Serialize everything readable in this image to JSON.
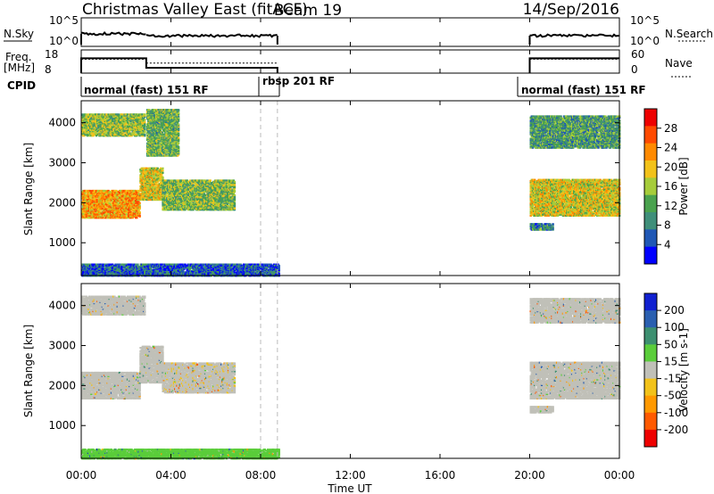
{
  "header": {
    "radar": "Christmas Valley East (fitACF)",
    "beam": "Beam 19",
    "date": "14/Sep/2016"
  },
  "panels": {
    "nsky_label": "N.Sky",
    "nsky_ticks": [
      "10^5",
      "10^0"
    ],
    "nsearch_label": "N.Search",
    "nsearch_ticks": [
      "10^5",
      "10^0"
    ],
    "freq_label": "Freq.",
    "freq_unit": "[MHz]",
    "freq_ticks": [
      "18",
      "8"
    ],
    "nave_label": "Nave",
    "nave_ticks": [
      "60",
      "0"
    ],
    "cpid_label": "CPID"
  },
  "cpid_segments": [
    {
      "label": "normal (fast) 151 RF",
      "start": 0.0
    },
    {
      "label": "rbsp 201 RF",
      "start": 8.0
    },
    {
      "label": "normal (fast) 151 RF",
      "start": 20.0
    }
  ],
  "x_axis": {
    "label": "Time UT",
    "ticks": [
      "00:00",
      "04:00",
      "08:00",
      "12:00",
      "16:00",
      "20:00",
      "00:00"
    ]
  },
  "colors": {
    "power_scale": [
      "#0000ff",
      "#1f57b5",
      "#3f8f7a",
      "#4aa24e",
      "#a6cc3a",
      "#f2c21a",
      "#ff8a00",
      "#ff4a00",
      "#ee0000"
    ],
    "velocity_scale": [
      "#ee0000",
      "#ff5a00",
      "#ff9900",
      "#f2c21a",
      "#c0c0b8",
      "#5acd3a",
      "#3c8f70",
      "#2a5fb0",
      "#1020d0"
    ]
  },
  "chart_data": [
    {
      "type": "heatmap",
      "title": "",
      "xlabel": "Time UT",
      "ylabel": "Slant Range [km]",
      "xlim": [
        0,
        24
      ],
      "ylim": [
        180,
        4550
      ],
      "yticks": [
        "1000",
        "2000",
        "3000",
        "4000"
      ],
      "colorbar": {
        "label": "Power [dB]",
        "ticks": [
          "28",
          "24",
          "20",
          "16",
          "12",
          "8",
          "4"
        ],
        "range": [
          0,
          32
        ]
      },
      "regions": [
        {
          "t0": 0.0,
          "t1": 2.6,
          "r0": 1650,
          "r1": 2350,
          "level": 22
        },
        {
          "t0": 2.6,
          "t1": 3.6,
          "r0": 2100,
          "r1": 2900,
          "level": 18
        },
        {
          "t0": 3.6,
          "t1": 6.8,
          "r0": 1850,
          "r1": 2600,
          "level": 14
        },
        {
          "t0": 0.0,
          "t1": 2.8,
          "r0": 3700,
          "r1": 4250,
          "level": 15
        },
        {
          "t0": 2.9,
          "t1": 4.3,
          "r0": 3200,
          "r1": 4350,
          "level": 13
        },
        {
          "t0": 0.0,
          "t1": 8.8,
          "r0": 200,
          "r1": 500,
          "level": 6
        },
        {
          "t0": 20.0,
          "t1": 24.0,
          "r0": 1700,
          "r1": 2600,
          "level": 18
        },
        {
          "t0": 20.0,
          "t1": 24.0,
          "r0": 3400,
          "r1": 4200,
          "level": 11
        },
        {
          "t0": 20.0,
          "t1": 21.0,
          "r0": 1350,
          "r1": 1500,
          "level": 9
        }
      ]
    },
    {
      "type": "heatmap",
      "title": "",
      "xlabel": "Time UT",
      "ylabel": "Slant Range [km]",
      "xlim": [
        0,
        24
      ],
      "ylim": [
        180,
        4550
      ],
      "yticks": [
        "1000",
        "2000",
        "3000",
        "4000"
      ],
      "colorbar": {
        "label": "Velocity [m s-1]",
        "ticks": [
          "200",
          "100",
          "50",
          "15",
          "-15",
          "-50",
          "-100",
          "-200"
        ],
        "range": [
          -250,
          250
        ]
      },
      "regions": [
        {
          "t0": 0.0,
          "t1": 2.6,
          "r0": 1700,
          "r1": 2350,
          "level": 0
        },
        {
          "t0": 2.6,
          "t1": 3.6,
          "r0": 2100,
          "r1": 3000,
          "level": 0
        },
        {
          "t0": 3.6,
          "t1": 6.8,
          "r0": 1850,
          "r1": 2600,
          "level": -20
        },
        {
          "t0": 0.0,
          "t1": 2.8,
          "r0": 3800,
          "r1": 4250,
          "level": 0
        },
        {
          "t0": 0.0,
          "t1": 8.8,
          "r0": 200,
          "r1": 450,
          "level": 40
        },
        {
          "t0": 20.0,
          "t1": 24.0,
          "r0": 1700,
          "r1": 2600,
          "level": 0
        },
        {
          "t0": 20.0,
          "t1": 24.0,
          "r0": 3600,
          "r1": 4200,
          "level": 0
        },
        {
          "t0": 20.0,
          "t1": 21.0,
          "r0": 1350,
          "r1": 1500,
          "level": 0
        }
      ]
    }
  ]
}
